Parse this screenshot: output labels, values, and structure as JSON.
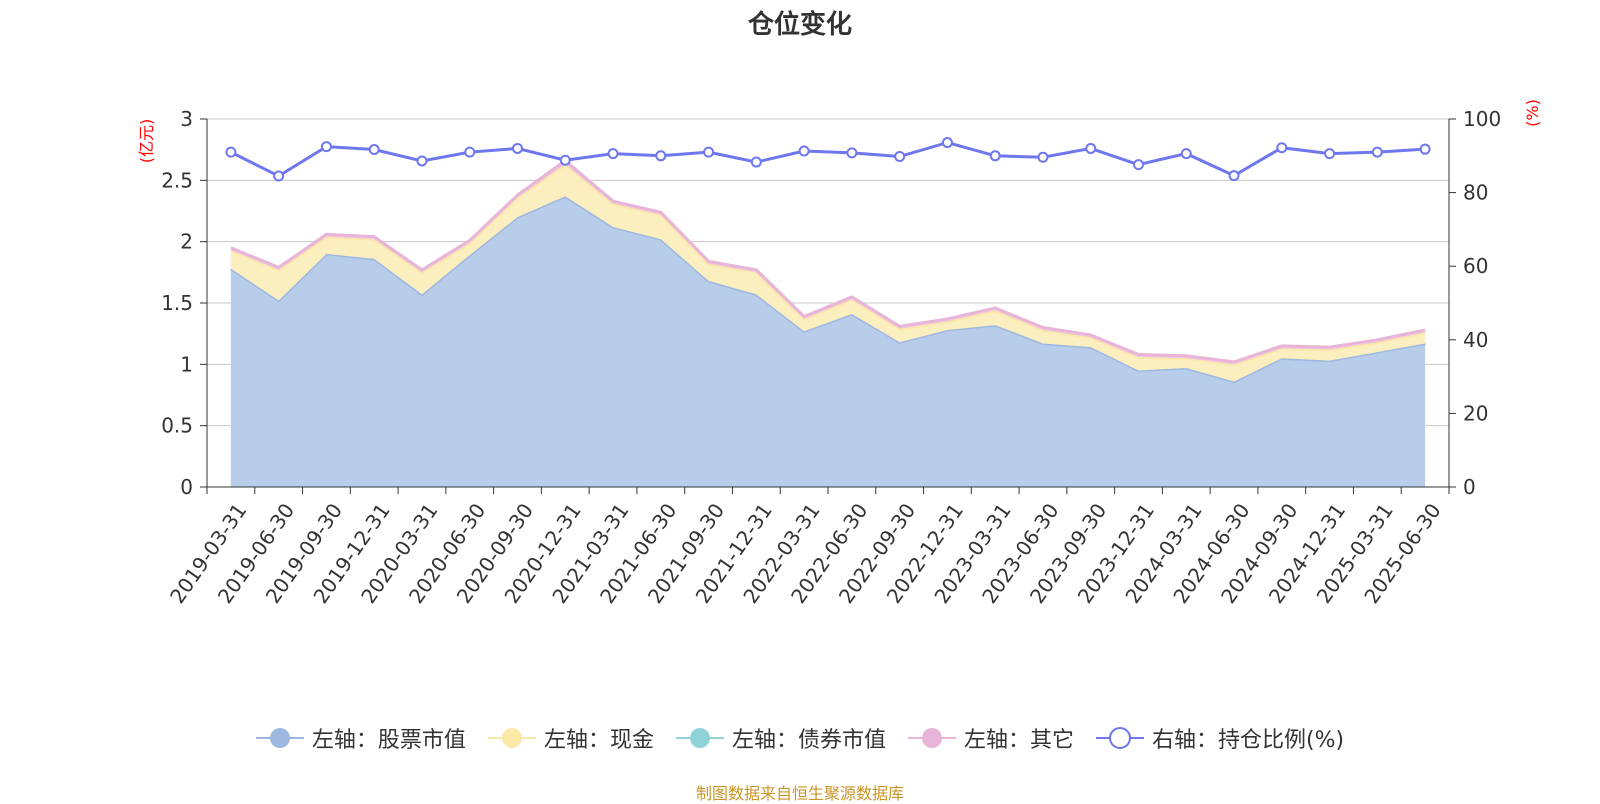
{
  "chart_data": {
    "type": "area",
    "title": "仓位变化",
    "y_left_unit": "(亿元)",
    "y_right_unit": "(%)",
    "ylim_left": [
      0,
      3
    ],
    "ylim_right": [
      0,
      100
    ],
    "y_left_ticks": [
      "0",
      "0.5",
      "1",
      "1.5",
      "2",
      "2.5",
      "3"
    ],
    "y_right_ticks": [
      "0",
      "20",
      "40",
      "60",
      "80",
      "100"
    ],
    "categories": [
      "2019-03-31",
      "2019-06-30",
      "2019-09-30",
      "2019-12-31",
      "2020-03-31",
      "2020-06-30",
      "2020-09-30",
      "2020-12-31",
      "2021-03-31",
      "2021-06-30",
      "2021-09-30",
      "2021-12-31",
      "2022-03-31",
      "2022-06-30",
      "2022-09-30",
      "2022-12-31",
      "2023-03-31",
      "2023-06-30",
      "2023-09-30",
      "2023-12-31",
      "2024-03-31",
      "2024-06-30",
      "2024-09-30",
      "2024-12-31",
      "2025-03-31",
      "2025-06-30"
    ],
    "series": [
      {
        "name": "左轴：股票市值",
        "axis": "left",
        "color": "#9db7e0",
        "fill": "#b8cdea",
        "values": [
          1.78,
          1.52,
          1.9,
          1.86,
          1.57,
          1.89,
          2.2,
          2.37,
          2.12,
          2.02,
          1.68,
          1.57,
          1.27,
          1.41,
          1.18,
          1.28,
          1.32,
          1.17,
          1.14,
          0.95,
          0.97,
          0.86,
          1.05,
          1.03,
          1.1,
          1.17
        ]
      },
      {
        "name": "左轴：现金",
        "axis": "left",
        "color": "#fbe8a6",
        "fill": "#fbeebf",
        "values": [
          0.15,
          0.25,
          0.14,
          0.16,
          0.18,
          0.1,
          0.16,
          0.26,
          0.19,
          0.2,
          0.14,
          0.18,
          0.1,
          0.12,
          0.11,
          0.07,
          0.12,
          0.11,
          0.08,
          0.11,
          0.08,
          0.14,
          0.08,
          0.09,
          0.08,
          0.09
        ]
      },
      {
        "name": "左轴：债券市值",
        "axis": "left",
        "color": "#8fd3d8",
        "fill": "#a8dde0",
        "values": [
          0,
          0,
          0,
          0,
          0,
          0,
          0,
          0,
          0,
          0,
          0,
          0,
          0,
          0,
          0,
          0,
          0,
          0,
          0,
          0,
          0,
          0,
          0,
          0,
          0,
          0
        ]
      },
      {
        "name": "左轴：其它",
        "axis": "left",
        "color": "#e8b4d8",
        "fill": "#f0c8e0",
        "values": [
          0.02,
          0.02,
          0.02,
          0.02,
          0.02,
          0.02,
          0.02,
          0.03,
          0.02,
          0.02,
          0.02,
          0.02,
          0.02,
          0.02,
          0.02,
          0.02,
          0.02,
          0.02,
          0.02,
          0.02,
          0.02,
          0.02,
          0.02,
          0.02,
          0.02,
          0.02
        ]
      },
      {
        "name": "右轴：持仓比例(%)",
        "axis": "right",
        "color": "#6f77ee",
        "values": [
          91,
          84.5,
          92.5,
          91.7,
          88.6,
          91,
          92,
          88.8,
          90.6,
          90,
          91,
          88.3,
          91.3,
          90.8,
          89.8,
          93.6,
          90,
          89.6,
          92,
          87.6,
          90.6,
          84.6,
          92.2,
          90.6,
          91,
          91.8
        ]
      }
    ],
    "grid": true,
    "legend_position": "bottom"
  },
  "source_text": "制图数据来自恒生聚源数据库"
}
